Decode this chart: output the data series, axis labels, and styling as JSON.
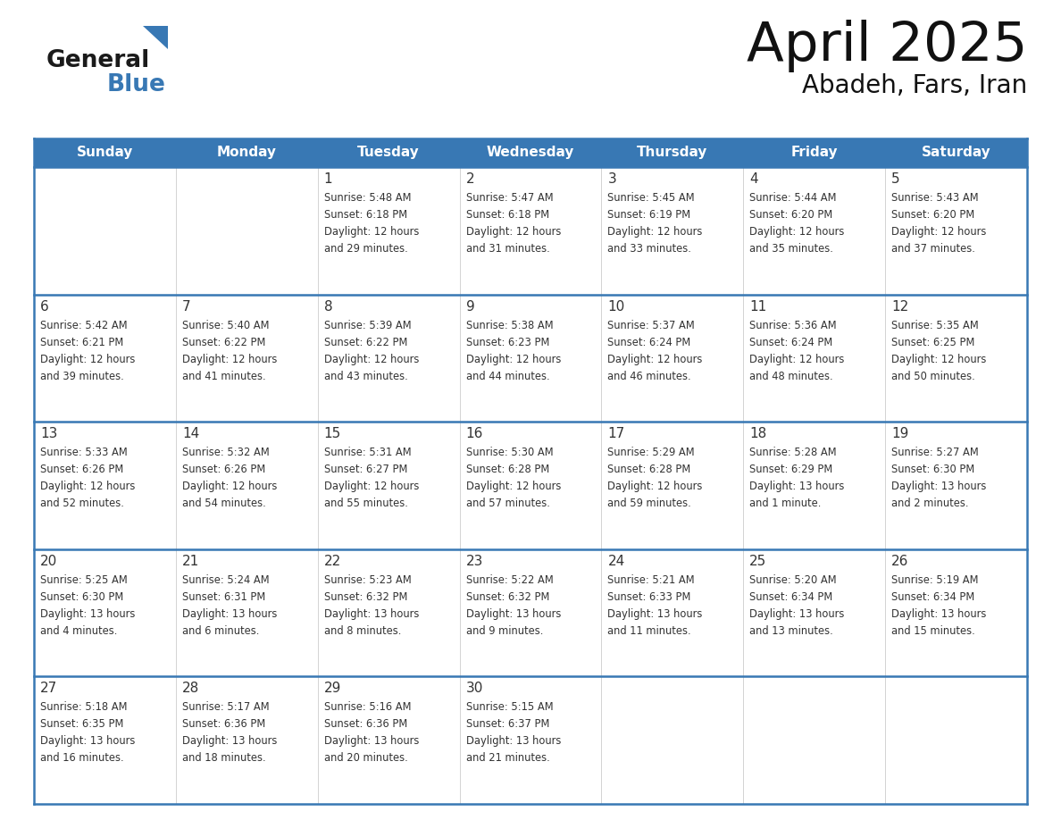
{
  "title": "April 2025",
  "subtitle": "Abadeh, Fars, Iran",
  "header_bg": "#3878b4",
  "header_text": "#ffffff",
  "border_color": "#3878b4",
  "text_color": "#333333",
  "days_of_week": [
    "Sunday",
    "Monday",
    "Tuesday",
    "Wednesday",
    "Thursday",
    "Friday",
    "Saturday"
  ],
  "weeks": [
    [
      {
        "day": "",
        "sunrise": "",
        "sunset": "",
        "daylight": ""
      },
      {
        "day": "",
        "sunrise": "",
        "sunset": "",
        "daylight": ""
      },
      {
        "day": "1",
        "sunrise": "Sunrise: 5:48 AM",
        "sunset": "Sunset: 6:18 PM",
        "daylight": "Daylight: 12 hours\nand 29 minutes."
      },
      {
        "day": "2",
        "sunrise": "Sunrise: 5:47 AM",
        "sunset": "Sunset: 6:18 PM",
        "daylight": "Daylight: 12 hours\nand 31 minutes."
      },
      {
        "day": "3",
        "sunrise": "Sunrise: 5:45 AM",
        "sunset": "Sunset: 6:19 PM",
        "daylight": "Daylight: 12 hours\nand 33 minutes."
      },
      {
        "day": "4",
        "sunrise": "Sunrise: 5:44 AM",
        "sunset": "Sunset: 6:20 PM",
        "daylight": "Daylight: 12 hours\nand 35 minutes."
      },
      {
        "day": "5",
        "sunrise": "Sunrise: 5:43 AM",
        "sunset": "Sunset: 6:20 PM",
        "daylight": "Daylight: 12 hours\nand 37 minutes."
      }
    ],
    [
      {
        "day": "6",
        "sunrise": "Sunrise: 5:42 AM",
        "sunset": "Sunset: 6:21 PM",
        "daylight": "Daylight: 12 hours\nand 39 minutes."
      },
      {
        "day": "7",
        "sunrise": "Sunrise: 5:40 AM",
        "sunset": "Sunset: 6:22 PM",
        "daylight": "Daylight: 12 hours\nand 41 minutes."
      },
      {
        "day": "8",
        "sunrise": "Sunrise: 5:39 AM",
        "sunset": "Sunset: 6:22 PM",
        "daylight": "Daylight: 12 hours\nand 43 minutes."
      },
      {
        "day": "9",
        "sunrise": "Sunrise: 5:38 AM",
        "sunset": "Sunset: 6:23 PM",
        "daylight": "Daylight: 12 hours\nand 44 minutes."
      },
      {
        "day": "10",
        "sunrise": "Sunrise: 5:37 AM",
        "sunset": "Sunset: 6:24 PM",
        "daylight": "Daylight: 12 hours\nand 46 minutes."
      },
      {
        "day": "11",
        "sunrise": "Sunrise: 5:36 AM",
        "sunset": "Sunset: 6:24 PM",
        "daylight": "Daylight: 12 hours\nand 48 minutes."
      },
      {
        "day": "12",
        "sunrise": "Sunrise: 5:35 AM",
        "sunset": "Sunset: 6:25 PM",
        "daylight": "Daylight: 12 hours\nand 50 minutes."
      }
    ],
    [
      {
        "day": "13",
        "sunrise": "Sunrise: 5:33 AM",
        "sunset": "Sunset: 6:26 PM",
        "daylight": "Daylight: 12 hours\nand 52 minutes."
      },
      {
        "day": "14",
        "sunrise": "Sunrise: 5:32 AM",
        "sunset": "Sunset: 6:26 PM",
        "daylight": "Daylight: 12 hours\nand 54 minutes."
      },
      {
        "day": "15",
        "sunrise": "Sunrise: 5:31 AM",
        "sunset": "Sunset: 6:27 PM",
        "daylight": "Daylight: 12 hours\nand 55 minutes."
      },
      {
        "day": "16",
        "sunrise": "Sunrise: 5:30 AM",
        "sunset": "Sunset: 6:28 PM",
        "daylight": "Daylight: 12 hours\nand 57 minutes."
      },
      {
        "day": "17",
        "sunrise": "Sunrise: 5:29 AM",
        "sunset": "Sunset: 6:28 PM",
        "daylight": "Daylight: 12 hours\nand 59 minutes."
      },
      {
        "day": "18",
        "sunrise": "Sunrise: 5:28 AM",
        "sunset": "Sunset: 6:29 PM",
        "daylight": "Daylight: 13 hours\nand 1 minute."
      },
      {
        "day": "19",
        "sunrise": "Sunrise: 5:27 AM",
        "sunset": "Sunset: 6:30 PM",
        "daylight": "Daylight: 13 hours\nand 2 minutes."
      }
    ],
    [
      {
        "day": "20",
        "sunrise": "Sunrise: 5:25 AM",
        "sunset": "Sunset: 6:30 PM",
        "daylight": "Daylight: 13 hours\nand 4 minutes."
      },
      {
        "day": "21",
        "sunrise": "Sunrise: 5:24 AM",
        "sunset": "Sunset: 6:31 PM",
        "daylight": "Daylight: 13 hours\nand 6 minutes."
      },
      {
        "day": "22",
        "sunrise": "Sunrise: 5:23 AM",
        "sunset": "Sunset: 6:32 PM",
        "daylight": "Daylight: 13 hours\nand 8 minutes."
      },
      {
        "day": "23",
        "sunrise": "Sunrise: 5:22 AM",
        "sunset": "Sunset: 6:32 PM",
        "daylight": "Daylight: 13 hours\nand 9 minutes."
      },
      {
        "day": "24",
        "sunrise": "Sunrise: 5:21 AM",
        "sunset": "Sunset: 6:33 PM",
        "daylight": "Daylight: 13 hours\nand 11 minutes."
      },
      {
        "day": "25",
        "sunrise": "Sunrise: 5:20 AM",
        "sunset": "Sunset: 6:34 PM",
        "daylight": "Daylight: 13 hours\nand 13 minutes."
      },
      {
        "day": "26",
        "sunrise": "Sunrise: 5:19 AM",
        "sunset": "Sunset: 6:34 PM",
        "daylight": "Daylight: 13 hours\nand 15 minutes."
      }
    ],
    [
      {
        "day": "27",
        "sunrise": "Sunrise: 5:18 AM",
        "sunset": "Sunset: 6:35 PM",
        "daylight": "Daylight: 13 hours\nand 16 minutes."
      },
      {
        "day": "28",
        "sunrise": "Sunrise: 5:17 AM",
        "sunset": "Sunset: 6:36 PM",
        "daylight": "Daylight: 13 hours\nand 18 minutes."
      },
      {
        "day": "29",
        "sunrise": "Sunrise: 5:16 AM",
        "sunset": "Sunset: 6:36 PM",
        "daylight": "Daylight: 13 hours\nand 20 minutes."
      },
      {
        "day": "30",
        "sunrise": "Sunrise: 5:15 AM",
        "sunset": "Sunset: 6:37 PM",
        "daylight": "Daylight: 13 hours\nand 21 minutes."
      },
      {
        "day": "",
        "sunrise": "",
        "sunset": "",
        "daylight": ""
      },
      {
        "day": "",
        "sunrise": "",
        "sunset": "",
        "daylight": ""
      },
      {
        "day": "",
        "sunrise": "",
        "sunset": "",
        "daylight": ""
      }
    ]
  ],
  "logo_general_color": "#1a1a1a",
  "logo_blue_color": "#3878b4",
  "logo_triangle_color": "#3878b4"
}
